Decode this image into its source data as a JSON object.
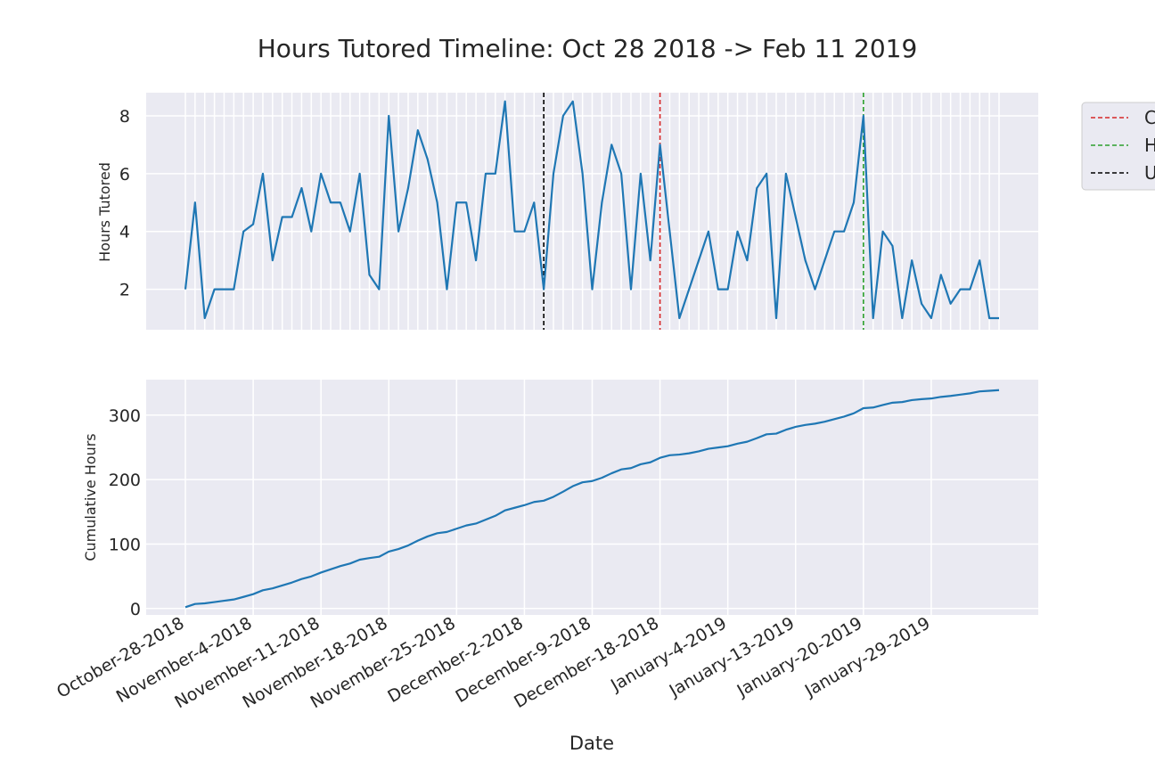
{
  "chart_data": [
    {
      "type": "line",
      "title": "Hours Tutored Timeline: Oct 28 2018 -> Feb 11 2019",
      "ylabel": "Hours Tutored",
      "ylim": [
        0.6,
        8.8
      ],
      "yticks": [
        "2",
        "4",
        "6",
        "8"
      ],
      "grid": true,
      "legend_position": "upper-right outside",
      "series": [
        {
          "color": "#1f77b4",
          "values": [
            2,
            5,
            1,
            2,
            2,
            2,
            4,
            4.25,
            6,
            3,
            4.5,
            4.5,
            5.5,
            4,
            6,
            5,
            5,
            4,
            6,
            2.5,
            2,
            8,
            4,
            5.5,
            7.5,
            6.5,
            5,
            2,
            5,
            5,
            3,
            6,
            6,
            8.5,
            4,
            4,
            5,
            2,
            6,
            8,
            8.5,
            6,
            2,
            5,
            7,
            6,
            2,
            6,
            3,
            7,
            4,
            1,
            2,
            3,
            4,
            2,
            2,
            4,
            3,
            5.5,
            6,
            1,
            6,
            4.5,
            3,
            2,
            3,
            4,
            4,
            5,
            8,
            1,
            4,
            3.5,
            1,
            3,
            1.5,
            1,
            2.5,
            1.5,
            2,
            2,
            3,
            1,
            1
          ]
        }
      ],
      "vlines": [
        {
          "index": 37,
          "color": "#000000",
          "style": "dashed"
        },
        {
          "index": 49,
          "color": "#d62728",
          "style": "dashed"
        },
        {
          "index": 70,
          "color": "#2ca02c",
          "style": "dashed"
        }
      ],
      "legend": [
        {
          "label": "C",
          "color": "#d62728"
        },
        {
          "label": "H",
          "color": "#2ca02c"
        },
        {
          "label": "U",
          "color": "#000000"
        }
      ]
    },
    {
      "type": "line",
      "ylabel": "Cumulative Hours",
      "ylim": [
        -10,
        355
      ],
      "yticks": [
        "0",
        "100",
        "200",
        "300"
      ],
      "xlabel": "Date",
      "xticks": [
        "October-28-2018",
        "November-4-2018",
        "November-11-2018",
        "November-18-2018",
        "November-25-2018",
        "December-2-2018",
        "December-9-2018",
        "December-18-2018",
        "January-4-2019",
        "January-13-2019",
        "January-20-2019",
        "January-29-2019"
      ],
      "grid": true,
      "series": [
        {
          "color": "#1f77b4",
          "cumulative_of_top": true
        }
      ]
    }
  ]
}
